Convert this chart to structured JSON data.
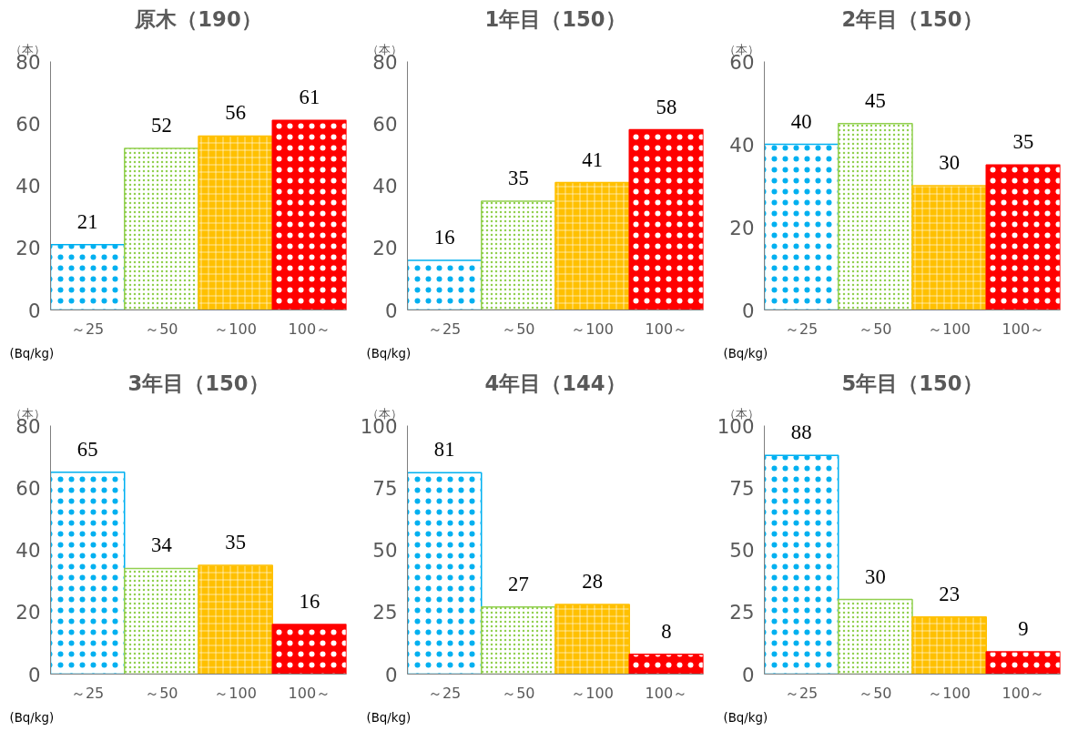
{
  "chart_data": [
    {
      "type": "bar",
      "title": "原木（190）",
      "ylabel": "（本）",
      "xlabel": "(Bq/kg)",
      "categories": [
        "～25",
        "～50",
        "～100",
        "100～"
      ],
      "values": [
        21,
        52,
        56,
        61
      ],
      "colors": [
        "#00b0f0",
        "#92d050",
        "#ffc000",
        "#ff0000"
      ],
      "ylim": [
        0,
        80
      ],
      "yticks": [
        0,
        20,
        40,
        60,
        80
      ],
      "data_labels": true,
      "grid": false
    },
    {
      "type": "bar",
      "title": "1年目（150）",
      "ylabel": "（本）",
      "xlabel": "(Bq/kg)",
      "categories": [
        "～25",
        "～50",
        "～100",
        "100～"
      ],
      "values": [
        16,
        35,
        41,
        58
      ],
      "colors": [
        "#00b0f0",
        "#92d050",
        "#ffc000",
        "#ff0000"
      ],
      "ylim": [
        0,
        80
      ],
      "yticks": [
        0,
        20,
        40,
        60,
        80
      ],
      "data_labels": true,
      "grid": false
    },
    {
      "type": "bar",
      "title": "2年目（150）",
      "ylabel": "（本）",
      "xlabel": "(Bq/kg)",
      "categories": [
        "～25",
        "～50",
        "～100",
        "100～"
      ],
      "values": [
        40,
        45,
        30,
        35
      ],
      "colors": [
        "#00b0f0",
        "#92d050",
        "#ffc000",
        "#ff0000"
      ],
      "ylim": [
        0,
        60
      ],
      "yticks": [
        0,
        20,
        40,
        60
      ],
      "data_labels": true,
      "grid": false
    },
    {
      "type": "bar",
      "title": "3年目（150）",
      "ylabel": "（本）",
      "xlabel": "(Bq/kg)",
      "categories": [
        "～25",
        "～50",
        "～100",
        "100～"
      ],
      "values": [
        65,
        34,
        35,
        16
      ],
      "colors": [
        "#00b0f0",
        "#92d050",
        "#ffc000",
        "#ff0000"
      ],
      "ylim": [
        0,
        80
      ],
      "yticks": [
        0,
        20,
        40,
        60,
        80
      ],
      "data_labels": true,
      "grid": false
    },
    {
      "type": "bar",
      "title": "4年目（144）",
      "ylabel": "（本）",
      "xlabel": "(Bq/kg)",
      "categories": [
        "～25",
        "～50",
        "～100",
        "100～"
      ],
      "values": [
        81,
        27,
        28,
        8
      ],
      "colors": [
        "#00b0f0",
        "#92d050",
        "#ffc000",
        "#ff0000"
      ],
      "ylim": [
        0,
        100
      ],
      "yticks": [
        0,
        25,
        50,
        75,
        100
      ],
      "data_labels": true,
      "grid": false
    },
    {
      "type": "bar",
      "title": "5年目（150）",
      "ylabel": "（本）",
      "xlabel": "(Bq/kg)",
      "categories": [
        "～25",
        "～50",
        "～100",
        "100～"
      ],
      "values": [
        88,
        30,
        23,
        9
      ],
      "colors": [
        "#00b0f0",
        "#92d050",
        "#ffc000",
        "#ff0000"
      ],
      "ylim": [
        0,
        100
      ],
      "yticks": [
        0,
        25,
        50,
        75,
        100
      ],
      "data_labels": true,
      "grid": false
    }
  ]
}
